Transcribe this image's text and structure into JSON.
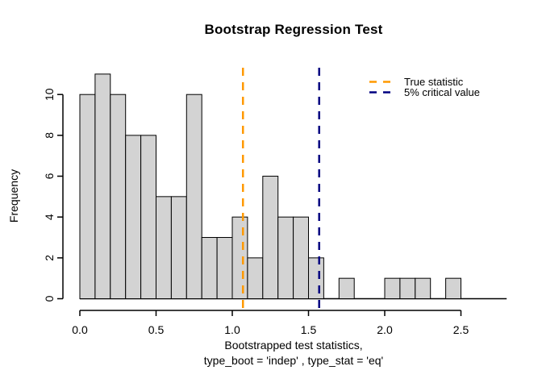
{
  "chart_data": {
    "type": "bar",
    "subtype": "histogram",
    "title": "Bootstrap Regression Test",
    "ylabel": "Frequency",
    "xlabel_line1": "Bootstrapped test statistics,",
    "xlabel_line2": "type_boot = 'indep' , type_stat = 'eq'",
    "bin_start": 0.0,
    "bin_width": 0.1,
    "counts": [
      10,
      11,
      10,
      8,
      8,
      5,
      5,
      10,
      3,
      3,
      4,
      2,
      6,
      4,
      4,
      2,
      0,
      1,
      0,
      0,
      1,
      1,
      1,
      0,
      1,
      0,
      0,
      0
    ],
    "xlim": [
      0.0,
      2.8
    ],
    "ylim": [
      0,
      11
    ],
    "x_ticks": [
      0.0,
      0.5,
      1.0,
      1.5,
      2.0,
      2.5
    ],
    "x_tick_labels": [
      "0.0",
      "0.5",
      "1.0",
      "1.5",
      "2.0",
      "2.5"
    ],
    "y_ticks": [
      0,
      2,
      4,
      6,
      8,
      10
    ],
    "y_tick_labels": [
      "0",
      "2",
      "4",
      "6",
      "8",
      "10"
    ],
    "grid": false,
    "bar_fill": "#d3d3d3",
    "bar_stroke": "#000000",
    "legend_position": "topright",
    "vlines": [
      {
        "value": 1.07,
        "label": "True statistic",
        "color": "#ff9900",
        "style": "dashed"
      },
      {
        "value": 1.57,
        "label": "5% critical value",
        "color": "#000080",
        "style": "dashed"
      }
    ]
  },
  "legend": {
    "items": [
      {
        "label": "True statistic",
        "color": "#ff9900"
      },
      {
        "label": "5% critical value",
        "color": "#000080"
      }
    ]
  }
}
